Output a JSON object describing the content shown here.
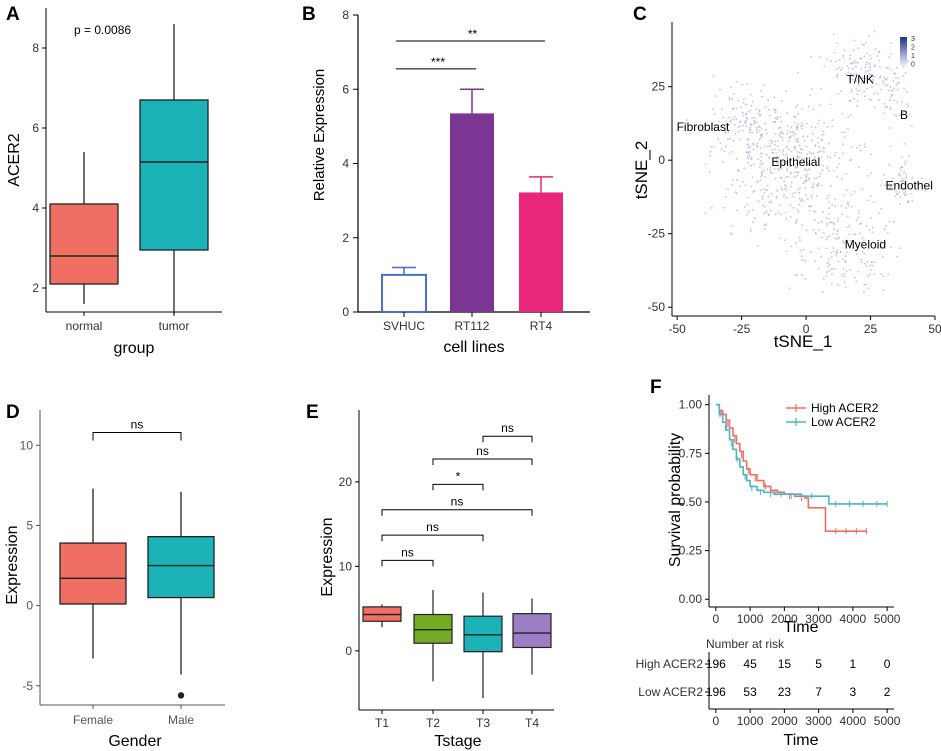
{
  "panels": {
    "A": {
      "letter": "A"
    },
    "B": {
      "letter": "B"
    },
    "C": {
      "letter": "C"
    },
    "D": {
      "letter": "D"
    },
    "E": {
      "letter": "E"
    },
    "F": {
      "letter": "F"
    }
  },
  "colors": {
    "salmon": "#ef6f62",
    "teal": "#1bb3b8",
    "svhuc": "#4a6fd1",
    "rt112": "#7b3593",
    "rt4": "#e8277a",
    "green": "#74ab22",
    "purple_box": "#9b7ec4",
    "high": "#ef6f62",
    "low": "#4fb3c2",
    "tsne_dot": "#8f8fd4"
  },
  "chart_data": [
    {
      "id": "A",
      "type": "box",
      "title": "",
      "annotation": "p = 0.0086",
      "xlabel": "group",
      "ylabel": "ACER2",
      "ylim": [
        1.4,
        9.0
      ],
      "yticks": [
        "2",
        "4",
        "6",
        "8"
      ],
      "ytick_values": [
        2,
        4,
        6,
        8
      ],
      "categories": [
        "normal",
        "tumor"
      ],
      "boxes": [
        {
          "label": "normal",
          "min": 1.6,
          "q1": 2.1,
          "median": 2.8,
          "q3": 4.1,
          "max": 5.4,
          "color": "#ef6f62"
        },
        {
          "label": "tumor",
          "min": 1.35,
          "q1": 2.95,
          "median": 5.15,
          "q3": 6.7,
          "max": 8.6,
          "color": "#1bb3b8"
        }
      ]
    },
    {
      "id": "B",
      "type": "bar",
      "title": "",
      "xlabel": "cell lines",
      "ylabel": "Relative Expression",
      "ylim": [
        0,
        8
      ],
      "yticks": [
        "0",
        "2",
        "4",
        "6",
        "8"
      ],
      "ytick_values": [
        0,
        2,
        4,
        6,
        8
      ],
      "categories": [
        "SVHUC",
        "RT112",
        "RT4"
      ],
      "values": [
        1.0,
        5.35,
        3.22
      ],
      "errors": [
        0.2,
        0.65,
        0.42
      ],
      "significance": [
        {
          "from": 0,
          "to": 1,
          "label": "***",
          "y": 6.55
        },
        {
          "from": 0,
          "to": 2,
          "label": "**",
          "y": 7.3
        }
      ]
    },
    {
      "id": "C",
      "type": "scatter",
      "title": "",
      "xlabel": "tSNE_1",
      "ylabel": "tSNE_2",
      "xlim": [
        -52,
        50
      ],
      "ylim": [
        -53,
        47
      ],
      "xticks": [
        "-50",
        "-25",
        "0",
        "25",
        "50"
      ],
      "xtick_values": [
        -50,
        -25,
        0,
        25,
        50
      ],
      "yticks": [
        "-50",
        "-25",
        "0",
        "25"
      ],
      "ytick_values": [
        -50,
        -25,
        0,
        25
      ],
      "legend": {
        "values": [
          "3",
          "2",
          "1",
          "0"
        ]
      },
      "clusters": [
        {
          "name": "T/NK",
          "cx": 21,
          "cy": 30,
          "sx": 9,
          "sy": 7,
          "n": 130,
          "lx": 21,
          "ly": 26
        },
        {
          "name": "B",
          "cx": 36,
          "cy": 22,
          "sx": 4,
          "sy": 6,
          "n": 45,
          "lx": 38,
          "ly": 14
        },
        {
          "name": "Fibroblast",
          "cx": -22,
          "cy": 12,
          "sx": 12,
          "sy": 8,
          "n": 150,
          "lx": -40,
          "ly": 10
        },
        {
          "name": "Epithelial",
          "cx": -5,
          "cy": -3,
          "sx": 17,
          "sy": 14,
          "n": 420,
          "lx": -4,
          "ly": -2
        },
        {
          "name": "Endothel",
          "cx": 38,
          "cy": -8,
          "sx": 5,
          "sy": 7,
          "n": 55,
          "lx": 40,
          "ly": -10
        },
        {
          "name": "Myeloid",
          "cx": 15,
          "cy": -30,
          "sx": 13,
          "sy": 9,
          "n": 160,
          "lx": 23,
          "ly": -30
        }
      ]
    },
    {
      "id": "D",
      "type": "box",
      "title": "",
      "xlabel": "Gender",
      "ylabel": "Expression",
      "ylim": [
        -6.2,
        12.2
      ],
      "yticks": [
        "-5",
        "0",
        "5",
        "10"
      ],
      "ytick_values": [
        -5,
        0,
        5,
        10
      ],
      "categories": [
        "Female",
        "Male"
      ],
      "boxes": [
        {
          "label": "Female",
          "min": -3.3,
          "q1": 0.1,
          "median": 1.7,
          "q3": 3.9,
          "max": 7.3,
          "color": "#ef6f62",
          "outliers": []
        },
        {
          "label": "Male",
          "min": -4.3,
          "q1": 0.5,
          "median": 2.5,
          "q3": 4.3,
          "max": 7.1,
          "color": "#1bb3b8",
          "outliers": [
            -5.6
          ]
        }
      ],
      "significance": [
        {
          "from": 0,
          "to": 1,
          "label": "ns",
          "y": 10.8
        }
      ]
    },
    {
      "id": "E",
      "type": "box",
      "title": "",
      "xlabel": "Tstage",
      "ylabel": "Expression",
      "ylim": [
        -7,
        28.5
      ],
      "yticks": [
        "0",
        "10",
        "20"
      ],
      "ytick_values": [
        0,
        10,
        20
      ],
      "categories": [
        "T1",
        "T2",
        "T3",
        "T4"
      ],
      "boxes": [
        {
          "label": "T1",
          "min": 2.8,
          "q1": 3.5,
          "median": 4.3,
          "q3": 5.2,
          "max": 5.5,
          "color": "#ef6f62"
        },
        {
          "label": "T2",
          "min": -3.6,
          "q1": 0.9,
          "median": 2.5,
          "q3": 4.3,
          "max": 7.2,
          "color": "#74ab22"
        },
        {
          "label": "T3",
          "min": -5.6,
          "q1": -0.1,
          "median": 1.9,
          "q3": 4.1,
          "max": 6.9,
          "color": "#1bb3b8"
        },
        {
          "label": "T4",
          "min": -2.8,
          "q1": 0.4,
          "median": 2.1,
          "q3": 4.4,
          "max": 6.2,
          "color": "#9b7ec4"
        }
      ],
      "significance": [
        {
          "from": 2,
          "to": 3,
          "label": "ns",
          "y": 25.4
        },
        {
          "from": 1,
          "to": 3,
          "label": "ns",
          "y": 22.7
        },
        {
          "from": 1,
          "to": 2,
          "label": "*",
          "y": 19.7
        },
        {
          "from": 0,
          "to": 3,
          "label": "ns",
          "y": 16.7
        },
        {
          "from": 0,
          "to": 2,
          "label": "ns",
          "y": 13.7
        },
        {
          "from": 0,
          "to": 1,
          "label": "ns",
          "y": 10.7
        }
      ]
    },
    {
      "id": "F",
      "type": "line",
      "title": "",
      "xlabel": "Time",
      "ylabel": "Survival probability",
      "xlim": [
        -200,
        5200
      ],
      "ylim": [
        -0.04,
        1.05
      ],
      "xticks": [
        "0",
        "1000",
        "2000",
        "3000",
        "4000",
        "5000"
      ],
      "xtick_values": [
        0,
        1000,
        2000,
        3000,
        4000,
        5000
      ],
      "yticks": [
        "0.00",
        "0.25",
        "0.50",
        "0.75",
        "1.00"
      ],
      "ytick_values": [
        0,
        0.25,
        0.5,
        0.75,
        1.0
      ],
      "legend": [
        "High ACER2",
        "Low ACER2"
      ],
      "series": [
        {
          "name": "High ACER2",
          "color": "#ef6f62",
          "x": [
            0,
            100,
            200,
            300,
            400,
            500,
            600,
            700,
            800,
            900,
            1000,
            1200,
            1400,
            1600,
            1800,
            2000,
            2300,
            2600,
            2700,
            3100,
            3200,
            4400
          ],
          "y": [
            1.0,
            0.97,
            0.95,
            0.92,
            0.88,
            0.84,
            0.8,
            0.76,
            0.71,
            0.67,
            0.64,
            0.61,
            0.58,
            0.56,
            0.55,
            0.54,
            0.53,
            0.52,
            0.47,
            0.47,
            0.35,
            0.35
          ],
          "censor_x": [
            150,
            350,
            550,
            750,
            950,
            1150,
            1450,
            1750,
            2150,
            2500,
            3500,
            3800,
            4100,
            4400
          ],
          "censor_y": [
            0.96,
            0.9,
            0.82,
            0.74,
            0.66,
            0.62,
            0.58,
            0.55,
            0.53,
            0.52,
            0.35,
            0.35,
            0.35,
            0.35
          ]
        },
        {
          "name": "Low ACER2",
          "color": "#4fb3c2",
          "x": [
            0,
            100,
            200,
            300,
            400,
            500,
            600,
            700,
            800,
            900,
            1000,
            1200,
            1400,
            1700,
            2000,
            2500,
            3000,
            3300,
            5000
          ],
          "y": [
            1.0,
            0.95,
            0.91,
            0.87,
            0.82,
            0.77,
            0.72,
            0.68,
            0.64,
            0.61,
            0.58,
            0.56,
            0.55,
            0.54,
            0.54,
            0.53,
            0.53,
            0.49,
            0.49
          ],
          "censor_x": [
            120,
            280,
            450,
            620,
            850,
            1050,
            1300,
            1600,
            1900,
            2200,
            2800,
            3500,
            3900,
            4300,
            4700,
            5000
          ],
          "censor_y": [
            0.95,
            0.88,
            0.8,
            0.72,
            0.63,
            0.57,
            0.55,
            0.54,
            0.54,
            0.53,
            0.53,
            0.49,
            0.49,
            0.49,
            0.49,
            0.49
          ]
        }
      ],
      "risk_table": {
        "title": "Number at risk",
        "xlabel": "Time",
        "rows": [
          {
            "label": "High ACER2",
            "values": [
              "196",
              "45",
              "15",
              "5",
              "1",
              "0"
            ]
          },
          {
            "label": "Low ACER2",
            "values": [
              "196",
              "53",
              "23",
              "7",
              "3",
              "2"
            ]
          }
        ]
      }
    }
  ]
}
